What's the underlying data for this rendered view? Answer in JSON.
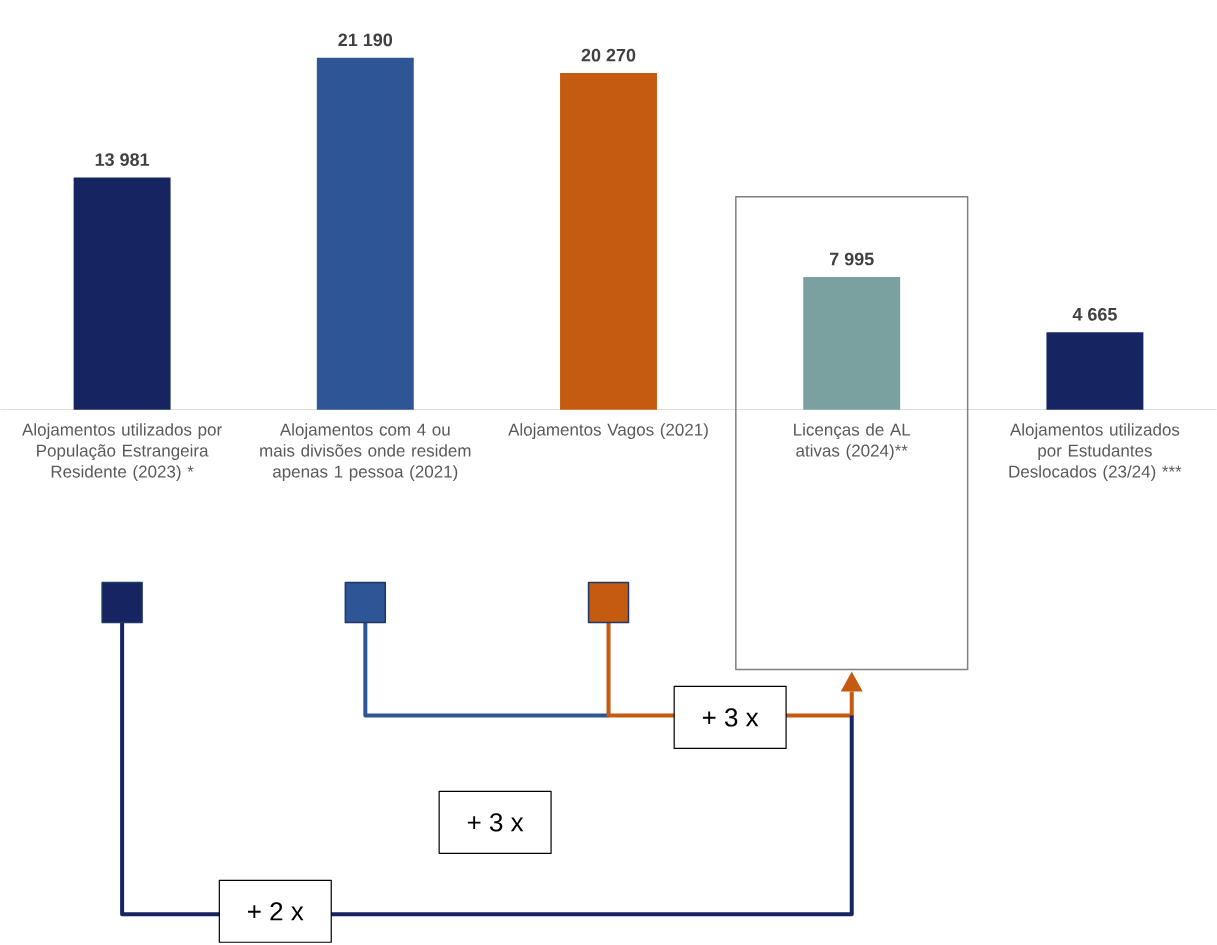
{
  "chart_data": {
    "type": "bar",
    "categories": [
      "Alojamentos utilizados por População Estrangeira Residente (2023) *",
      "Alojamentos com 4 ou mais divisões onde residem apenas 1 pessoa (2021)",
      "Alojamentos Vagos (2021)",
      "Licenças de AL ativas (2024)**",
      "Alojamentos utilizados por Estudantes Deslocados (23/24) ***"
    ],
    "values": [
      13981,
      21190,
      20270,
      7995,
      4665
    ],
    "colors": [
      "#172462",
      "#2e5596",
      "#c55a11",
      "#7ba0a0",
      "#172462"
    ],
    "value_labels": [
      "13 981",
      "21 190",
      "20 270",
      "7 995",
      "4 665"
    ],
    "tick_labels": "x",
    "annotations": [
      "+ 3 x",
      "+ 3 x",
      "+ 2 x"
    ]
  }
}
